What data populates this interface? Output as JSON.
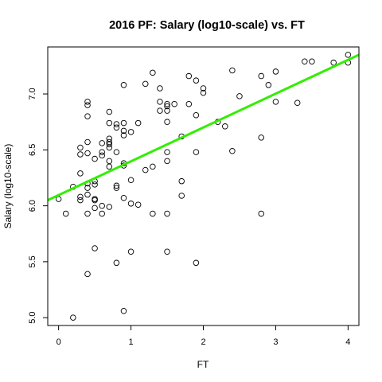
{
  "chart_data": {
    "type": "scatter",
    "title": "2016 PF: Salary (log10-scale) vs. FT",
    "xlabel": "FT",
    "ylabel": "Salary (log10-scale)",
    "xlim": [
      -0.15,
      4.15
    ],
    "ylim": [
      4.93,
      7.42
    ],
    "xticks": [
      0,
      1,
      2,
      3,
      4
    ],
    "xtick_labels": [
      "0",
      "1",
      "2",
      "3",
      "4"
    ],
    "yticks": [
      5.0,
      5.5,
      6.0,
      6.5,
      7.0
    ],
    "ytick_labels": [
      "5.0",
      "5.5",
      "6.0",
      "6.5",
      "7.0"
    ],
    "grid": false,
    "series": [
      {
        "marker": "open-circle",
        "color": "#000000",
        "points": [
          [
            0.0,
            6.06
          ],
          [
            0.1,
            5.93
          ],
          [
            0.2,
            6.17
          ],
          [
            0.2,
            5.0
          ],
          [
            0.3,
            6.52
          ],
          [
            0.3,
            6.46
          ],
          [
            0.3,
            6.29
          ],
          [
            0.3,
            6.08
          ],
          [
            0.3,
            6.05
          ],
          [
            0.4,
            6.93
          ],
          [
            0.4,
            6.9
          ],
          [
            0.4,
            6.8
          ],
          [
            0.4,
            6.57
          ],
          [
            0.4,
            6.47
          ],
          [
            0.4,
            6.2
          ],
          [
            0.4,
            6.16
          ],
          [
            0.4,
            6.1
          ],
          [
            0.4,
            5.93
          ],
          [
            0.4,
            5.39
          ],
          [
            0.5,
            6.42
          ],
          [
            0.5,
            6.22
          ],
          [
            0.5,
            6.19
          ],
          [
            0.5,
            6.06
          ],
          [
            0.5,
            6.06
          ],
          [
            0.5,
            6.05
          ],
          [
            0.5,
            5.98
          ],
          [
            0.5,
            5.62
          ],
          [
            0.6,
            6.56
          ],
          [
            0.6,
            6.48
          ],
          [
            0.6,
            6.45
          ],
          [
            0.6,
            6.0
          ],
          [
            0.6,
            5.93
          ],
          [
            0.7,
            6.84
          ],
          [
            0.7,
            6.74
          ],
          [
            0.7,
            6.6
          ],
          [
            0.7,
            6.57
          ],
          [
            0.7,
            6.55
          ],
          [
            0.7,
            6.52
          ],
          [
            0.7,
            6.4
          ],
          [
            0.7,
            6.35
          ],
          [
            0.7,
            5.99
          ],
          [
            0.8,
            6.73
          ],
          [
            0.8,
            6.7
          ],
          [
            0.8,
            6.48
          ],
          [
            0.8,
            6.18
          ],
          [
            0.8,
            6.16
          ],
          [
            0.8,
            5.49
          ],
          [
            0.9,
            7.08
          ],
          [
            0.9,
            6.74
          ],
          [
            0.9,
            6.67
          ],
          [
            0.9,
            6.63
          ],
          [
            0.9,
            6.38
          ],
          [
            0.9,
            6.36
          ],
          [
            0.9,
            6.07
          ],
          [
            0.9,
            5.06
          ],
          [
            1.0,
            6.66
          ],
          [
            1.0,
            6.23
          ],
          [
            1.0,
            6.02
          ],
          [
            1.0,
            5.59
          ],
          [
            1.1,
            6.74
          ],
          [
            1.1,
            6.01
          ],
          [
            1.2,
            7.09
          ],
          [
            1.2,
            6.32
          ],
          [
            1.3,
            7.19
          ],
          [
            1.3,
            6.35
          ],
          [
            1.3,
            5.93
          ],
          [
            1.4,
            7.05
          ],
          [
            1.4,
            6.93
          ],
          [
            1.4,
            6.85
          ],
          [
            1.5,
            6.91
          ],
          [
            1.5,
            6.89
          ],
          [
            1.5,
            6.85
          ],
          [
            1.5,
            6.75
          ],
          [
            1.5,
            6.48
          ],
          [
            1.5,
            6.4
          ],
          [
            1.5,
            5.93
          ],
          [
            1.5,
            5.59
          ],
          [
            1.6,
            6.91
          ],
          [
            1.7,
            6.62
          ],
          [
            1.7,
            6.22
          ],
          [
            1.7,
            6.09
          ],
          [
            1.8,
            7.16
          ],
          [
            1.8,
            6.91
          ],
          [
            1.9,
            7.12
          ],
          [
            1.9,
            6.81
          ],
          [
            1.9,
            6.48
          ],
          [
            1.9,
            5.49
          ],
          [
            2.0,
            7.05
          ],
          [
            2.0,
            7.01
          ],
          [
            2.2,
            6.75
          ],
          [
            2.3,
            6.71
          ],
          [
            2.4,
            7.21
          ],
          [
            2.4,
            6.49
          ],
          [
            2.5,
            6.98
          ],
          [
            2.8,
            7.16
          ],
          [
            2.8,
            6.61
          ],
          [
            2.8,
            5.93
          ],
          [
            2.9,
            7.08
          ],
          [
            3.0,
            7.2
          ],
          [
            3.0,
            6.93
          ],
          [
            3.3,
            6.92
          ],
          [
            3.4,
            7.29
          ],
          [
            3.5,
            7.29
          ],
          [
            3.8,
            7.28
          ],
          [
            4.0,
            7.35
          ],
          [
            4.0,
            7.28
          ]
        ]
      }
    ],
    "fit_line": {
      "color": "#33ee00",
      "x": [
        -0.15,
        4.15
      ],
      "y": [
        6.05,
        7.35
      ]
    }
  }
}
